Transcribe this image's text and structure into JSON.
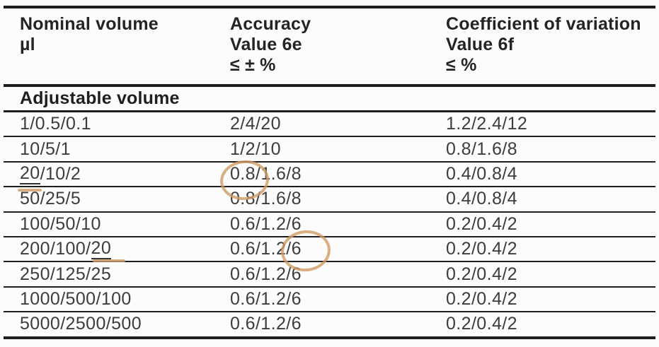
{
  "table": {
    "columns": [
      {
        "title": "Nominal volume",
        "subtitle": "µl",
        "constraint": ""
      },
      {
        "title": "Accuracy",
        "subtitle": "Value 6e",
        "constraint": "≤ ± %"
      },
      {
        "title": "Coefficient of variation",
        "subtitle": "Value 6f",
        "constraint": "≤ %"
      }
    ],
    "section": "Adjustable volume",
    "rows": [
      {
        "nominal": "1/0.5/0.1",
        "accuracy": "2/4/20",
        "cv": "1.2/2.4/12"
      },
      {
        "nominal": "10/5/1",
        "accuracy": "1/2/10",
        "cv": "0.8/1.6/8"
      },
      {
        "nominal_marked": "20",
        "nominal_rest": "/10/2",
        "accuracy_circled": "0.8",
        "accuracy_rest": "/1.6/8",
        "cv": "0.4/0.8/4"
      },
      {
        "nominal": "50/25/5",
        "accuracy": "0.8/1.6/8",
        "cv": "0.4/0.8/4"
      },
      {
        "nominal": "100/50/10",
        "accuracy": "0.6/1.2/6",
        "cv": "0.2/0.4/2"
      },
      {
        "nominal_prefix": "200/100/",
        "nominal_marked": "20",
        "accuracy_prefix": "0.6/1.2/",
        "accuracy_circled": "6",
        "cv": "0.2/0.4/2"
      },
      {
        "nominal": "250/125/25",
        "accuracy": "0.6/1.2/6",
        "cv": "0.2/0.4/2"
      },
      {
        "nominal": "1000/500/100",
        "accuracy": "0.6/1.2/6",
        "cv": "0.2/0.4/2"
      },
      {
        "nominal": "5000/2500/500",
        "accuracy": "0.6/1.2/6",
        "cv": "0.2/0.4/2"
      }
    ]
  },
  "annotations": {
    "color": "#cf9a63"
  }
}
